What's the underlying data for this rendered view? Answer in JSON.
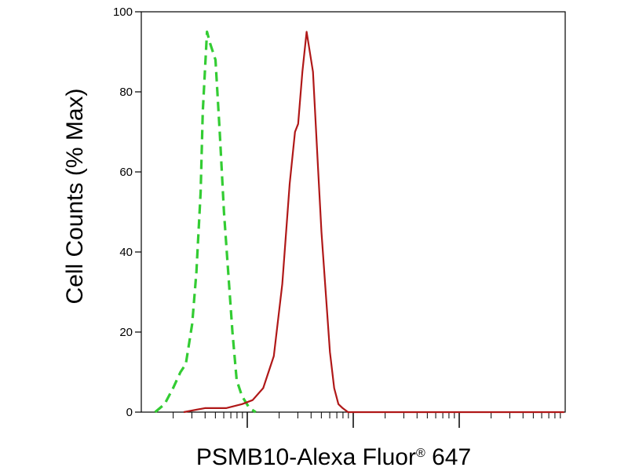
{
  "chart_data": {
    "type": "line",
    "title": "",
    "xlabel": "PSMB10-Alexa Fluor",
    "xlabel_sup": "®",
    "xlabel_suffix": " 647",
    "ylabel": "Cell Counts (% Max)",
    "x_scale": "log",
    "xlim": [
      0,
      4
    ],
    "ylim": [
      0,
      100
    ],
    "y_ticks": [
      0,
      20,
      40,
      60,
      80,
      100
    ],
    "y_tick_labels": [
      "0",
      "20",
      "40",
      "60",
      "80",
      "100"
    ],
    "grid": false,
    "legend": "none",
    "series": [
      {
        "color": "#33cc33",
        "dash": "dashed",
        "x": [
          0.13,
          0.22,
          0.3,
          0.37,
          0.42,
          0.48,
          0.52,
          0.56,
          0.58,
          0.6,
          0.62,
          0.65,
          0.7,
          0.74,
          0.78,
          0.82,
          0.86,
          0.9,
          0.95,
          1.02,
          1.08
        ],
        "y": [
          0,
          2,
          6,
          10,
          12,
          22,
          35,
          55,
          75,
          85,
          95,
          92,
          88,
          70,
          50,
          35,
          20,
          8,
          4,
          1,
          0
        ]
      },
      {
        "color": "#b01818",
        "dash": "solid",
        "x": [
          0.4,
          0.6,
          0.8,
          0.95,
          1.05,
          1.15,
          1.25,
          1.33,
          1.4,
          1.45,
          1.48,
          1.52,
          1.56,
          1.62,
          1.67,
          1.7,
          1.74,
          1.78,
          1.82,
          1.86,
          1.9,
          1.95,
          2.0,
          2.1,
          2.5,
          3.0,
          3.5,
          3.99
        ],
        "y": [
          0,
          1,
          1,
          2,
          3,
          6,
          14,
          32,
          57,
          70,
          72,
          85,
          95,
          85,
          60,
          45,
          30,
          15,
          6,
          2,
          1,
          0,
          0,
          0,
          0,
          0,
          0,
          0
        ]
      }
    ]
  }
}
